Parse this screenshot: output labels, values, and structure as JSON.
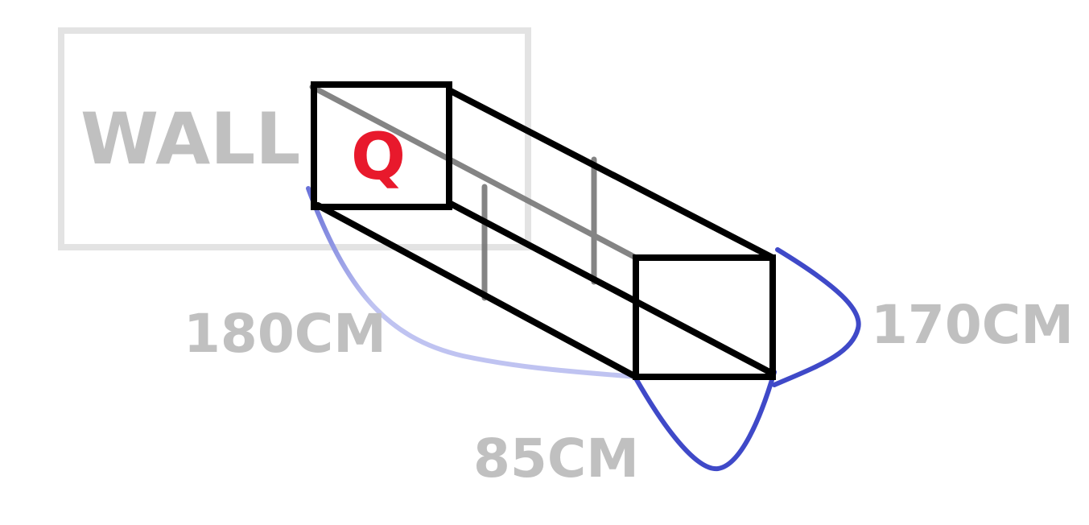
{
  "labels": {
    "wall": "WALL",
    "point": "Q",
    "dim_left": "180CM",
    "dim_right": "170CM",
    "dim_bottom": "85CM"
  },
  "colors": {
    "background": "#ffffff",
    "wall_outline": "#e3e3e3",
    "wall_text": "#c0c0c0",
    "box_edges": "#000000",
    "hidden_edges": "#777777",
    "point_label": "#e8192c",
    "dimension_curve": "#3f49c8",
    "dimension_curve_faded": "#bfc3f1",
    "dimension_text": "#c0c0c0"
  }
}
